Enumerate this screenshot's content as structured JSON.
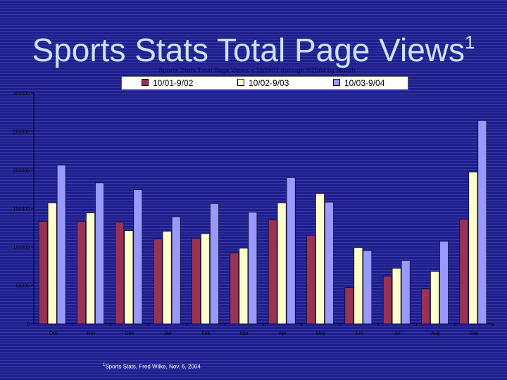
{
  "slide": {
    "title": "Sports Stats Total Page Views",
    "title_marker": "1",
    "footnote_marker": "1",
    "footnote": "Sports Stats, Fred Wilke, Nov. 6, 2004"
  },
  "colors": {
    "background": "#1f1f8c",
    "title": "#c9e4f6"
  },
  "chart_data": {
    "type": "bar",
    "title": "Sports Stats Total Page Views – 10/2001 through 9/2004 by Month",
    "categories": [
      "Oct",
      "Nov",
      "Dec",
      "Jan",
      "Feb",
      "Mar",
      "Apr",
      "May",
      "Jun",
      "Jul",
      "Aug",
      "Sep"
    ],
    "series": [
      {
        "name": "10/01-9/02",
        "color": "#993355",
        "values": [
          133000,
          133000,
          132000,
          110000,
          111000,
          92000,
          135000,
          115000,
          47000,
          62000,
          45000,
          136000
        ]
      },
      {
        "name": "10/02-9/03",
        "color": "#ffffcc",
        "values": [
          157000,
          144000,
          121000,
          120000,
          117000,
          98000,
          157000,
          169000,
          99000,
          72000,
          68000,
          197000
        ]
      },
      {
        "name": "10/03-9/04",
        "color": "#9999ff",
        "values": [
          206000,
          183000,
          174000,
          139000,
          156000,
          145000,
          190000,
          158000,
          95000,
          82000,
          107000,
          264000
        ]
      }
    ],
    "y_ticks": [
      "0",
      "50000",
      "100000",
      "150000",
      "200000",
      "250000",
      "300000"
    ],
    "ylim": [
      0,
      300000
    ],
    "xlabel": "",
    "ylabel": "",
    "legend": "top"
  }
}
